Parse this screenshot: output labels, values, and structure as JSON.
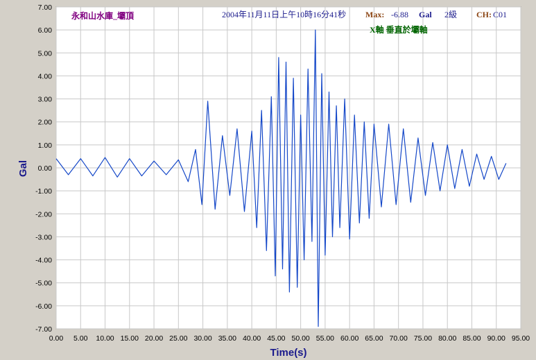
{
  "header": {
    "station": "永和山水庫_壩頂",
    "datetime": "2004年11月11日上午10時16分41秒",
    "max_label": "Max:",
    "max_value": "-6.88",
    "unit_label": "Gal",
    "intensity": "2級",
    "channel_label": "CH:",
    "channel_value": "C01",
    "axis_note": "X軸 垂直於壩軸"
  },
  "colors": {
    "background": "#d4d0c8",
    "plot_area": "#ffffff",
    "grid": "#c8c8c8",
    "trace": "#1447c8",
    "station_text": "#800080",
    "datetime_text": "#1a1a8c",
    "max_label_text": "#8b4513",
    "value_text": "#1a1a8c",
    "axis_note_text": "#006400",
    "axis_title": "#1a1a8c"
  },
  "chart_data": {
    "type": "line",
    "xlabel": "Time(s)",
    "ylabel": "Gal",
    "xlim": [
      0,
      95
    ],
    "ylim": [
      -7,
      7
    ],
    "xticks": [
      0,
      5,
      10,
      15,
      20,
      25,
      30,
      35,
      40,
      45,
      50,
      55,
      60,
      65,
      70,
      75,
      80,
      85,
      90,
      95
    ],
    "yticks": [
      7,
      6,
      5,
      4,
      3,
      2,
      1,
      0,
      -1,
      -2,
      -3,
      -4,
      -5,
      -6,
      -7
    ],
    "xtick_labels": [
      "0.00",
      "5.00",
      "10.00",
      "15.00",
      "20.00",
      "25.00",
      "30.00",
      "35.00",
      "40.00",
      "45.00",
      "50.00",
      "55.00",
      "60.00",
      "65.00",
      "70.00",
      "75.00",
      "80.00",
      "85.00",
      "90.00",
      "95.00"
    ],
    "ytick_labels": [
      "7.00",
      "6.00",
      "5.00",
      "4.00",
      "3.00",
      "2.00",
      "1.00",
      "0.00",
      "-1.00",
      "-2.00",
      "-3.00",
      "-4.00",
      "-5.00",
      "-6.00",
      "-7.00"
    ],
    "grid": true,
    "series": [
      {
        "x": [
          0,
          2.5,
          5,
          7.5,
          10,
          12.5,
          15,
          17.5,
          20,
          22.5,
          25,
          27,
          28.5,
          29.8,
          31,
          32.5,
          34,
          35.5,
          37,
          38.5,
          40,
          41,
          42,
          43,
          44,
          44.8,
          45.5,
          46.3,
          47,
          47.7,
          48.5,
          49.3,
          50,
          50.7,
          51.5,
          52.3,
          53,
          53.6,
          54.3,
          55,
          55.8,
          56.5,
          57.3,
          58,
          59,
          60,
          61,
          62,
          63,
          64,
          65,
          66.5,
          68,
          69.5,
          71,
          72.5,
          74,
          75.5,
          77,
          78.5,
          80,
          81.5,
          83,
          84.5,
          86,
          87.5,
          89,
          90.5,
          92
        ],
        "y": [
          0.4,
          -0.3,
          0.4,
          -0.35,
          0.45,
          -0.4,
          0.4,
          -0.35,
          0.3,
          -0.3,
          0.35,
          -0.6,
          0.8,
          -1.6,
          2.9,
          -1.8,
          1.4,
          -1.2,
          1.7,
          -1.9,
          1.6,
          -2.6,
          2.5,
          -3.6,
          3.1,
          -4.7,
          4.8,
          -4.4,
          4.6,
          -5.4,
          3.9,
          -5.2,
          2.3,
          -4.0,
          4.3,
          -3.2,
          6.0,
          -6.9,
          4.1,
          -3.8,
          3.3,
          -3.0,
          2.7,
          -2.6,
          3.0,
          -3.1,
          2.3,
          -2.4,
          2.0,
          -2.2,
          1.9,
          -1.7,
          1.9,
          -1.6,
          1.7,
          -1.5,
          1.3,
          -1.2,
          1.1,
          -1.0,
          1.0,
          -0.9,
          0.8,
          -0.8,
          0.6,
          -0.5,
          0.5,
          -0.5,
          0.2
        ]
      }
    ]
  }
}
